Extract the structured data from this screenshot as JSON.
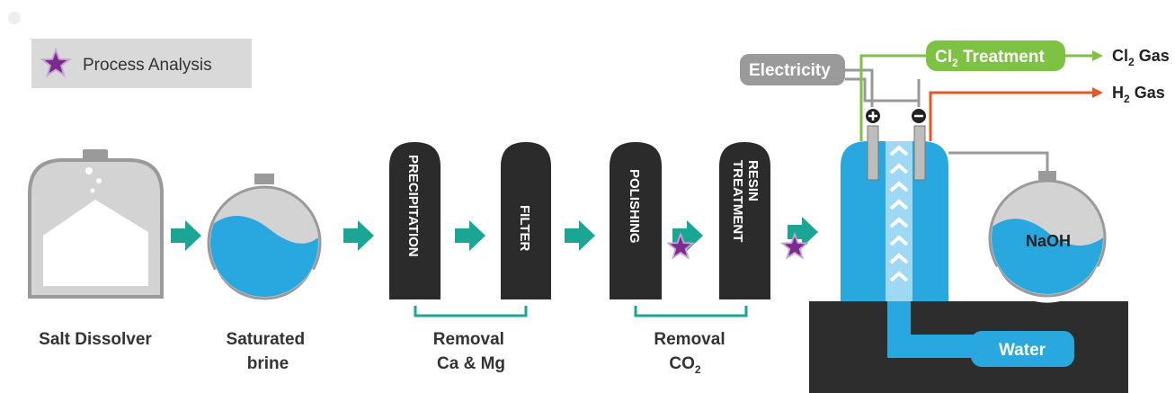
{
  "legend": {
    "label": "Process Analysis"
  },
  "salt_dissolver": {
    "label": "Salt Dissolver"
  },
  "saturated_brine": {
    "label_lines": [
      "Saturated",
      "brine"
    ]
  },
  "columns": {
    "precipitation": "PRECIPITATION",
    "filter": "FILTER",
    "polishing": "POLISHING",
    "resin_treatment": [
      "RESIN",
      "TREATMENT"
    ]
  },
  "removal_ca_mg": {
    "label_lines": [
      "Removal",
      "Ca & Mg"
    ]
  },
  "removal_co2": {
    "label_lines": [
      "Removal",
      "CO"
    ],
    "subscript": "2"
  },
  "electricity": {
    "label": "Electricity"
  },
  "cl2_treatment": {
    "label": "Cl",
    "subscript": "2",
    "rest": " Treatment"
  },
  "cl2_gas": {
    "label": "Cl",
    "subscript": "2",
    "rest": " Gas"
  },
  "h2_gas": {
    "label": "H",
    "subscript": "2",
    "rest": " Gas"
  },
  "naoh": {
    "label": "NaOH"
  },
  "water": {
    "label": "Water"
  }
}
